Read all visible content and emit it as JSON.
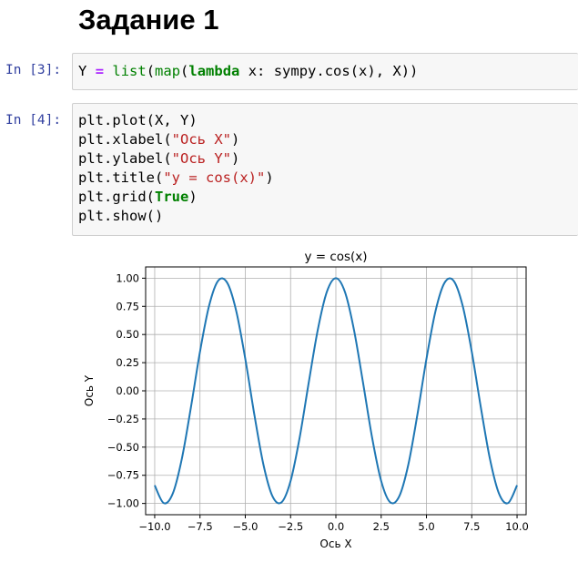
{
  "heading": "Задание 1",
  "cells": [
    {
      "prompt": "In [3]:",
      "code": {
        "var": "Y",
        "eq": "=",
        "list": "list",
        "open1": "(",
        "map": "map",
        "open2": "(",
        "lambda": "lambda",
        "rest": " x: sympy.cos(x), X))"
      }
    },
    {
      "prompt": "In [4]:",
      "lines": {
        "l1": "plt.plot(X, Y)",
        "l2a": "plt.xlabel(",
        "l2s": "\"Ось X\"",
        "l2b": ")",
        "l3a": "plt.ylabel(",
        "l3s": "\"Ось Y\"",
        "l3b": ")",
        "l4a": "plt.title(",
        "l4s": "\"y = cos(x)\"",
        "l4b": ")",
        "l5a": "plt.grid(",
        "l5k": "True",
        "l5b": ")",
        "l6": "plt.show()"
      }
    }
  ],
  "chart_data": {
    "type": "line",
    "title": "y = cos(x)",
    "xlabel": "Ось X",
    "ylabel": "Ось Y",
    "xlim": [
      -10.5,
      10.5
    ],
    "ylim": [
      -1.1,
      1.1
    ],
    "xticks": [
      -10.0,
      -7.5,
      -5.0,
      -2.5,
      0.0,
      2.5,
      5.0,
      7.5,
      10.0
    ],
    "xtick_labels": [
      "−10.0",
      "−7.5",
      "−5.0",
      "−2.5",
      "0.0",
      "2.5",
      "5.0",
      "7.5",
      "10.0"
    ],
    "yticks": [
      1.0,
      0.75,
      0.5,
      0.25,
      0.0,
      -0.25,
      -0.5,
      -0.75,
      -1.0
    ],
    "ytick_labels": [
      "1.00",
      "0.75",
      "0.50",
      "0.25",
      "0.00",
      "−0.25",
      "−0.50",
      "−0.75",
      "−1.00"
    ],
    "grid": true,
    "line_color": "#1f77b4",
    "series": [
      {
        "x": [
          -10.0,
          -9.5,
          -9.0,
          -8.5,
          -8.0,
          -7.5,
          -7.0,
          -6.5,
          -6.0,
          -5.5,
          -5.0,
          -4.5,
          -4.0,
          -3.5,
          -3.0,
          -2.5,
          -2.0,
          -1.5,
          -1.0,
          -0.5,
          0.0,
          0.5,
          1.0,
          1.5,
          2.0,
          2.5,
          3.0,
          3.5,
          4.0,
          4.5,
          5.0,
          5.5,
          6.0,
          6.5,
          7.0,
          7.5,
          8.0,
          8.5,
          9.0,
          9.5,
          10.0
        ],
        "y": [
          -0.839,
          -0.997,
          -0.911,
          -0.602,
          -0.146,
          0.347,
          0.754,
          0.977,
          0.96,
          0.709,
          0.284,
          -0.211,
          -0.654,
          -0.936,
          -0.99,
          -0.801,
          -0.416,
          0.071,
          0.54,
          0.878,
          1.0,
          0.878,
          0.54,
          0.071,
          -0.416,
          -0.801,
          -0.99,
          -0.936,
          -0.654,
          -0.211,
          0.284,
          0.709,
          0.96,
          0.977,
          0.754,
          0.347,
          -0.146,
          -0.602,
          -0.911,
          -0.997,
          -0.839
        ]
      }
    ]
  }
}
